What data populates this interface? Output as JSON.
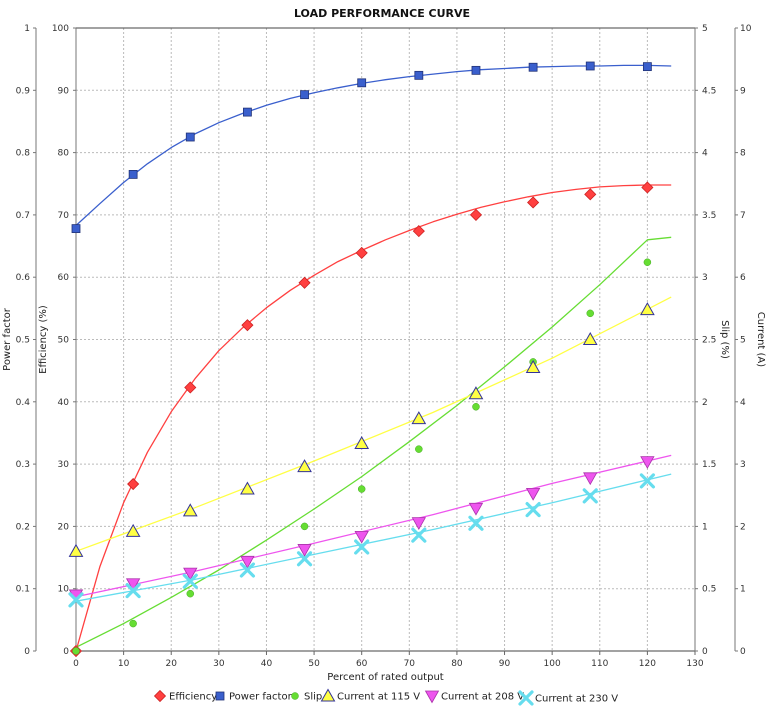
{
  "chart_data": {
    "type": "line",
    "title": "LOAD PERFORMANCE CURVE",
    "xlabel": "Percent of rated output",
    "xlim": [
      0,
      130
    ],
    "xticks": [
      0,
      10,
      20,
      30,
      40,
      50,
      60,
      70,
      80,
      90,
      100,
      110,
      120,
      130
    ],
    "grid": true,
    "legend_position": "bottom",
    "axes": {
      "power_factor": {
        "label": "Power factor",
        "lim": [
          0,
          1
        ],
        "ticks": [
          "0",
          "0.1",
          "0.2",
          "0.3",
          "0.4",
          "0.5",
          "0.6",
          "0.7",
          "0.8",
          "0.9",
          "1"
        ]
      },
      "efficiency": {
        "label": "Efficiency (%)",
        "lim": [
          0,
          100
        ],
        "ticks": [
          "0",
          "10",
          "20",
          "30",
          "40",
          "50",
          "60",
          "70",
          "80",
          "90",
          "100"
        ]
      },
      "slip": {
        "label": "Slip (%)",
        "lim": [
          0,
          5
        ],
        "ticks": [
          "0",
          "0.5",
          "1",
          "1.5",
          "2",
          "2.5",
          "3",
          "3.5",
          "4",
          "4.5",
          "5"
        ]
      },
      "current": {
        "label": "Current (A)",
        "lim": [
          0,
          10
        ],
        "ticks": [
          "0",
          "1",
          "2",
          "3",
          "4",
          "5",
          "6",
          "7",
          "8",
          "9",
          "10"
        ]
      }
    },
    "x": [
      0,
      12,
      24,
      36,
      48,
      60,
      72,
      84,
      96,
      108,
      120
    ],
    "series": [
      {
        "name": "Efficiency",
        "axis": "efficiency",
        "marker": "diamond",
        "color": "#ff4040",
        "values": [
          0,
          26.8,
          42.3,
          52.3,
          59.1,
          63.9,
          67.4,
          70.0,
          72.0,
          73.3,
          74.4
        ],
        "fit": [
          [
            0,
            0
          ],
          [
            5,
            13.5
          ],
          [
            10,
            23.8
          ],
          [
            15,
            31.9
          ],
          [
            20,
            38.4
          ],
          [
            25,
            43.7
          ],
          [
            30,
            48.2
          ],
          [
            35,
            51.9
          ],
          [
            40,
            55.1
          ],
          [
            45,
            57.9
          ],
          [
            50,
            60.3
          ],
          [
            55,
            62.5
          ],
          [
            60,
            64.3
          ],
          [
            65,
            66.0
          ],
          [
            70,
            67.5
          ],
          [
            75,
            68.9
          ],
          [
            80,
            70.1
          ],
          [
            85,
            71.2
          ],
          [
            90,
            72.1
          ],
          [
            95,
            72.9
          ],
          [
            100,
            73.6
          ],
          [
            105,
            74.1
          ],
          [
            110,
            74.5
          ],
          [
            115,
            74.7
          ],
          [
            120,
            74.8
          ],
          [
            125,
            74.8
          ]
        ]
      },
      {
        "name": "Power factor",
        "axis": "power_factor",
        "marker": "square",
        "color": "#3a5fcd",
        "values": [
          0.678,
          0.765,
          0.825,
          0.865,
          0.893,
          0.912,
          0.924,
          0.932,
          0.937,
          0.939,
          0.938
        ],
        "fit": [
          [
            0,
            0.683
          ],
          [
            5,
            0.718
          ],
          [
            10,
            0.752
          ],
          [
            15,
            0.782
          ],
          [
            20,
            0.808
          ],
          [
            25,
            0.83
          ],
          [
            30,
            0.848
          ],
          [
            35,
            0.863
          ],
          [
            40,
            0.876
          ],
          [
            45,
            0.887
          ],
          [
            50,
            0.896
          ],
          [
            55,
            0.904
          ],
          [
            60,
            0.911
          ],
          [
            65,
            0.917
          ],
          [
            70,
            0.922
          ],
          [
            75,
            0.926
          ],
          [
            80,
            0.93
          ],
          [
            85,
            0.933
          ],
          [
            90,
            0.935
          ],
          [
            95,
            0.937
          ],
          [
            100,
            0.938
          ],
          [
            105,
            0.939
          ],
          [
            110,
            0.939
          ],
          [
            115,
            0.94
          ],
          [
            120,
            0.94
          ],
          [
            125,
            0.939
          ]
        ]
      },
      {
        "name": "Slip",
        "axis": "slip",
        "marker": "circle",
        "color": "#66dd33",
        "values": [
          0,
          0.22,
          0.46,
          0.72,
          1.0,
          1.3,
          1.62,
          1.96,
          2.32,
          2.71,
          3.12
        ],
        "fit": [
          [
            0,
            0.03
          ],
          [
            10,
            0.22
          ],
          [
            20,
            0.43
          ],
          [
            30,
            0.65
          ],
          [
            40,
            0.89
          ],
          [
            50,
            1.14
          ],
          [
            60,
            1.4
          ],
          [
            70,
            1.68
          ],
          [
            80,
            1.97
          ],
          [
            90,
            2.28
          ],
          [
            100,
            2.6
          ],
          [
            110,
            2.94
          ],
          [
            120,
            3.3
          ],
          [
            125,
            3.32
          ]
        ]
      },
      {
        "name": "Current at 115 V",
        "axis": "current",
        "marker": "triangle-up",
        "color": "#ffff44",
        "values": [
          1.6,
          1.92,
          2.25,
          2.6,
          2.96,
          3.33,
          3.73,
          4.13,
          4.55,
          5.0,
          5.48
        ],
        "fit": [
          [
            0,
            1.6
          ],
          [
            25,
            2.3
          ],
          [
            50,
            3.05
          ],
          [
            75,
            3.83
          ],
          [
            100,
            4.7
          ],
          [
            125,
            5.68
          ]
        ]
      },
      {
        "name": "Current at 208 V",
        "axis": "current",
        "marker": "triangle-down",
        "color": "#ee55ee",
        "values": [
          0.9,
          1.08,
          1.25,
          1.44,
          1.63,
          1.84,
          2.06,
          2.29,
          2.53,
          2.78,
          3.04
        ],
        "fit": [
          [
            0,
            0.87
          ],
          [
            25,
            1.28
          ],
          [
            50,
            1.73
          ],
          [
            75,
            2.19
          ],
          [
            100,
            2.69
          ],
          [
            125,
            3.14
          ]
        ]
      },
      {
        "name": "Current at 230 V",
        "axis": "current",
        "marker": "x",
        "color": "#66ddee",
        "values": [
          0.82,
          0.97,
          1.12,
          1.3,
          1.48,
          1.67,
          1.86,
          2.05,
          2.27,
          2.49,
          2.73
        ],
        "fit": [
          [
            0,
            0.8
          ],
          [
            25,
            1.15
          ],
          [
            50,
            1.55
          ],
          [
            75,
            1.95
          ],
          [
            100,
            2.38
          ],
          [
            125,
            2.84
          ]
        ]
      }
    ]
  }
}
